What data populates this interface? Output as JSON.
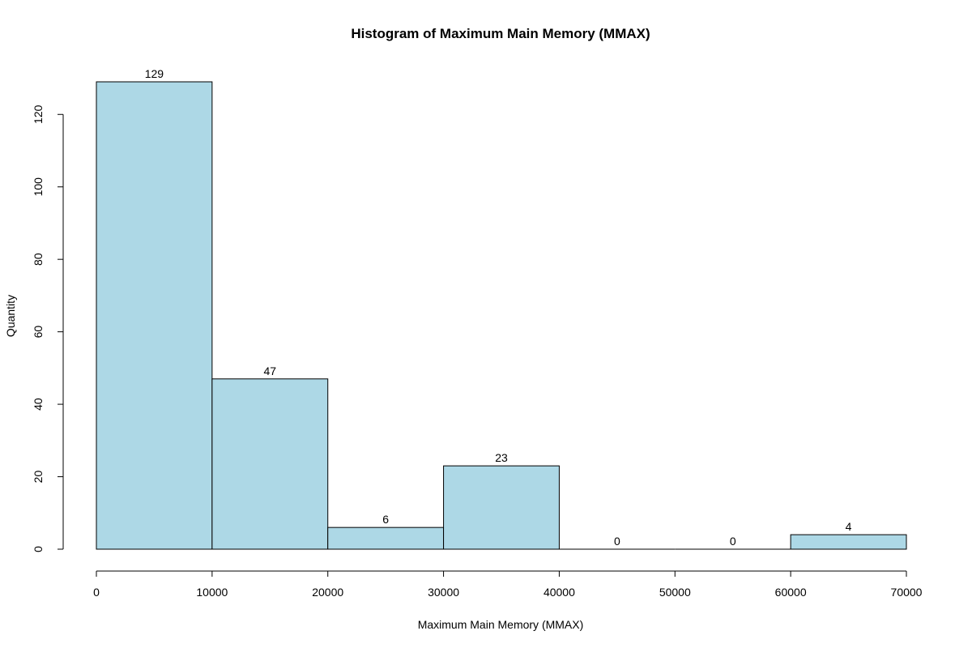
{
  "chart_data": {
    "type": "bar",
    "title": "Histogram of Maximum Main Memory (MMAX)",
    "xlabel": "Maximum Main Memory (MMAX)",
    "ylabel": "Quantity",
    "bins": [
      {
        "start": 0,
        "end": 10000,
        "count": 129
      },
      {
        "start": 10000,
        "end": 20000,
        "count": 47
      },
      {
        "start": 20000,
        "end": 30000,
        "count": 6
      },
      {
        "start": 30000,
        "end": 40000,
        "count": 23
      },
      {
        "start": 40000,
        "end": 50000,
        "count": 0
      },
      {
        "start": 50000,
        "end": 60000,
        "count": 0
      },
      {
        "start": 60000,
        "end": 70000,
        "count": 4
      }
    ],
    "xlim": [
      0,
      70000
    ],
    "ylim": [
      0,
      129
    ],
    "x_ticks": [
      0,
      10000,
      20000,
      30000,
      40000,
      50000,
      60000,
      70000
    ],
    "y_ticks": [
      0,
      20,
      40,
      60,
      80,
      100,
      120
    ],
    "bar_color": "#add8e6",
    "grid": false
  }
}
